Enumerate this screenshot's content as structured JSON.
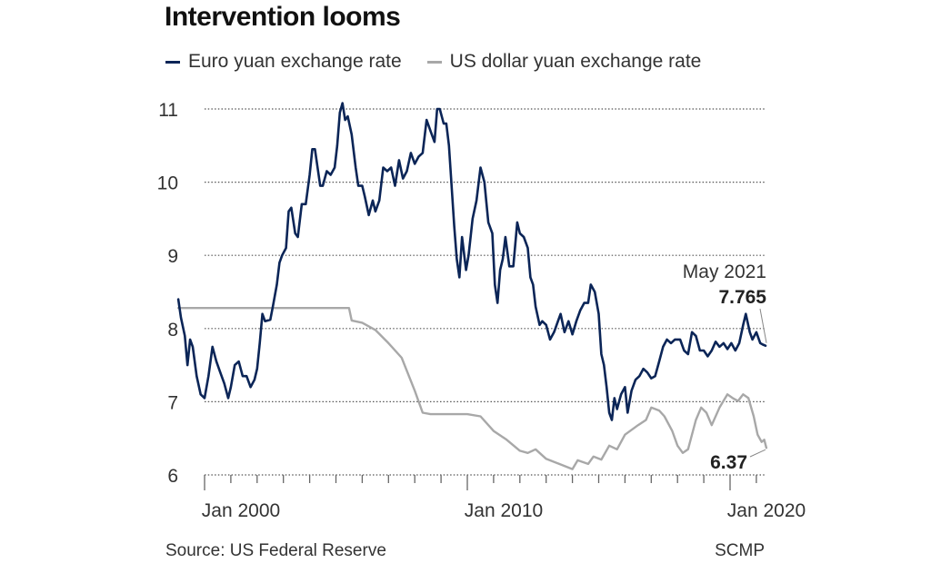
{
  "chart_data": {
    "type": "line",
    "title": "Intervention looms",
    "xlabel": "",
    "ylabel": "",
    "ylim": [
      6,
      11
    ],
    "xlim": [
      1999.0,
      2021.5
    ],
    "grid": true,
    "legend_position": "top-left",
    "y_ticks": [
      "11",
      "10",
      "9",
      "8",
      "7",
      "6"
    ],
    "y_tick_values": [
      11,
      10,
      9,
      8,
      7,
      6
    ],
    "x_tick_labels": [
      {
        "label": "Jan 2000",
        "value": 2000
      },
      {
        "label": "Jan 2010",
        "value": 2010
      },
      {
        "label": "Jan 2020",
        "value": 2020
      }
    ],
    "minor_tick_years": [
      2000,
      2001,
      2002,
      2003,
      2004,
      2005,
      2006,
      2007,
      2008,
      2009,
      2010,
      2011,
      2012,
      2013,
      2014,
      2015,
      2016,
      2017,
      2018,
      2019,
      2020,
      2021
    ],
    "series": [
      {
        "name": "Euro yuan exchange rate",
        "color": "#0b2557",
        "points": [
          [
            1999.0,
            8.4
          ],
          [
            1999.1,
            8.15
          ],
          [
            1999.25,
            7.9
          ],
          [
            1999.35,
            7.5
          ],
          [
            1999.45,
            7.85
          ],
          [
            1999.55,
            7.75
          ],
          [
            1999.7,
            7.35
          ],
          [
            1999.85,
            7.1
          ],
          [
            2000.0,
            7.05
          ],
          [
            2000.15,
            7.35
          ],
          [
            2000.3,
            7.75
          ],
          [
            2000.45,
            7.55
          ],
          [
            2000.6,
            7.4
          ],
          [
            2000.75,
            7.25
          ],
          [
            2000.9,
            7.05
          ],
          [
            2001.0,
            7.2
          ],
          [
            2001.15,
            7.5
          ],
          [
            2001.3,
            7.55
          ],
          [
            2001.45,
            7.35
          ],
          [
            2001.6,
            7.35
          ],
          [
            2001.75,
            7.2
          ],
          [
            2001.9,
            7.3
          ],
          [
            2002.0,
            7.45
          ],
          [
            2002.1,
            7.8
          ],
          [
            2002.2,
            8.2
          ],
          [
            2002.3,
            8.1
          ],
          [
            2002.5,
            8.12
          ],
          [
            2002.6,
            8.3
          ],
          [
            2002.75,
            8.6
          ],
          [
            2002.85,
            8.9
          ],
          [
            2002.95,
            9.0
          ],
          [
            2003.1,
            9.1
          ],
          [
            2003.2,
            9.6
          ],
          [
            2003.3,
            9.65
          ],
          [
            2003.45,
            9.3
          ],
          [
            2003.55,
            9.25
          ],
          [
            2003.7,
            9.7
          ],
          [
            2003.85,
            9.7
          ],
          [
            2004.0,
            10.1
          ],
          [
            2004.1,
            10.45
          ],
          [
            2004.2,
            10.45
          ],
          [
            2004.3,
            10.2
          ],
          [
            2004.4,
            9.95
          ],
          [
            2004.5,
            9.95
          ],
          [
            2004.65,
            10.15
          ],
          [
            2004.8,
            10.1
          ],
          [
            2004.95,
            10.2
          ],
          [
            2005.05,
            10.5
          ],
          [
            2005.15,
            10.95
          ],
          [
            2005.25,
            11.08
          ],
          [
            2005.35,
            10.85
          ],
          [
            2005.45,
            10.9
          ],
          [
            2005.6,
            10.65
          ],
          [
            2005.75,
            10.2
          ],
          [
            2005.85,
            9.95
          ],
          [
            2006.0,
            9.95
          ],
          [
            2006.1,
            9.8
          ],
          [
            2006.25,
            9.55
          ],
          [
            2006.4,
            9.75
          ],
          [
            2006.5,
            9.6
          ],
          [
            2006.65,
            9.75
          ],
          [
            2006.8,
            10.2
          ],
          [
            2006.95,
            10.15
          ],
          [
            2007.1,
            10.2
          ],
          [
            2007.25,
            9.95
          ],
          [
            2007.4,
            10.3
          ],
          [
            2007.55,
            10.05
          ],
          [
            2007.7,
            10.15
          ],
          [
            2007.85,
            10.4
          ],
          [
            2008.0,
            10.25
          ],
          [
            2008.15,
            10.35
          ],
          [
            2008.3,
            10.4
          ],
          [
            2008.45,
            10.85
          ],
          [
            2008.6,
            10.7
          ],
          [
            2008.75,
            10.55
          ],
          [
            2008.85,
            11.0
          ],
          [
            2008.95,
            11.0
          ],
          [
            2009.1,
            10.8
          ],
          [
            2009.2,
            10.8
          ],
          [
            2009.3,
            10.5
          ],
          [
            2009.4,
            9.95
          ],
          [
            2009.5,
            9.4
          ],
          [
            2009.6,
            8.95
          ],
          [
            2009.7,
            8.7
          ],
          [
            2009.8,
            9.25
          ],
          [
            2009.95,
            8.8
          ],
          [
            2010.05,
            9.0
          ],
          [
            2010.2,
            9.5
          ],
          [
            2010.35,
            9.75
          ],
          [
            2010.5,
            10.2
          ],
          [
            2010.65,
            10.0
          ],
          [
            2010.8,
            9.45
          ],
          [
            2010.95,
            9.3
          ],
          [
            2011.05,
            8.6
          ],
          [
            2011.15,
            8.35
          ],
          [
            2011.25,
            8.8
          ],
          [
            2011.35,
            8.95
          ],
          [
            2011.45,
            9.25
          ],
          [
            2011.6,
            8.85
          ],
          [
            2011.75,
            8.85
          ],
          [
            2011.9,
            9.45
          ],
          [
            2012.0,
            9.3
          ],
          [
            2012.15,
            9.25
          ],
          [
            2012.3,
            9.1
          ],
          [
            2012.4,
            8.7
          ],
          [
            2012.5,
            8.6
          ],
          [
            2012.6,
            8.3
          ],
          [
            2012.75,
            8.05
          ],
          [
            2012.85,
            8.1
          ],
          [
            2013.0,
            8.05
          ],
          [
            2013.15,
            7.85
          ],
          [
            2013.3,
            7.95
          ],
          [
            2013.45,
            8.1
          ],
          [
            2013.55,
            8.2
          ],
          [
            2013.7,
            7.95
          ],
          [
            2013.85,
            8.1
          ],
          [
            2014.0,
            7.92
          ],
          [
            2014.15,
            8.1
          ],
          [
            2014.3,
            8.25
          ],
          [
            2014.45,
            8.35
          ],
          [
            2014.6,
            8.35
          ],
          [
            2014.7,
            8.6
          ],
          [
            2014.85,
            8.5
          ],
          [
            2015.0,
            8.2
          ],
          [
            2015.1,
            7.65
          ],
          [
            2015.2,
            7.5
          ],
          [
            2015.3,
            7.2
          ],
          [
            2015.4,
            6.85
          ],
          [
            2015.5,
            6.75
          ],
          [
            2015.6,
            7.05
          ],
          [
            2015.7,
            6.9
          ],
          [
            2015.85,
            7.1
          ],
          [
            2016.0,
            7.2
          ],
          [
            2016.1,
            6.85
          ],
          [
            2016.25,
            7.15
          ],
          [
            2016.4,
            7.3
          ],
          [
            2016.55,
            7.35
          ],
          [
            2016.7,
            7.45
          ],
          [
            2016.85,
            7.4
          ],
          [
            2017.0,
            7.32
          ],
          [
            2017.15,
            7.35
          ],
          [
            2017.3,
            7.55
          ],
          [
            2017.45,
            7.75
          ],
          [
            2017.6,
            7.85
          ],
          [
            2017.75,
            7.8
          ],
          [
            2017.9,
            7.85
          ],
          [
            2018.1,
            7.85
          ],
          [
            2018.25,
            7.7
          ],
          [
            2018.4,
            7.65
          ],
          [
            2018.55,
            7.95
          ],
          [
            2018.7,
            7.9
          ],
          [
            2018.85,
            7.7
          ],
          [
            2019.0,
            7.7
          ],
          [
            2019.15,
            7.62
          ],
          [
            2019.3,
            7.7
          ],
          [
            2019.45,
            7.82
          ],
          [
            2019.6,
            7.75
          ],
          [
            2019.75,
            7.8
          ],
          [
            2019.9,
            7.72
          ],
          [
            2020.05,
            7.8
          ],
          [
            2020.2,
            7.7
          ],
          [
            2020.35,
            7.8
          ],
          [
            2020.5,
            8.05
          ],
          [
            2020.6,
            8.2
          ],
          [
            2020.75,
            7.95
          ],
          [
            2020.85,
            7.85
          ],
          [
            2021.0,
            7.95
          ],
          [
            2021.15,
            7.8
          ],
          [
            2021.25,
            7.78
          ],
          [
            2021.35,
            7.765
          ]
        ]
      },
      {
        "name": "US dollar yuan exchange rate",
        "color": "#a8a8a8",
        "points": [
          [
            1999.0,
            8.28
          ],
          [
            2005.5,
            8.28
          ],
          [
            2005.6,
            8.11
          ],
          [
            2006.0,
            8.08
          ],
          [
            2006.5,
            7.98
          ],
          [
            2007.0,
            7.8
          ],
          [
            2007.5,
            7.6
          ],
          [
            2008.0,
            7.15
          ],
          [
            2008.3,
            6.85
          ],
          [
            2008.6,
            6.83
          ],
          [
            2009.0,
            6.83
          ],
          [
            2009.5,
            6.83
          ],
          [
            2010.0,
            6.83
          ],
          [
            2010.5,
            6.8
          ],
          [
            2011.0,
            6.6
          ],
          [
            2011.5,
            6.48
          ],
          [
            2012.0,
            6.33
          ],
          [
            2012.3,
            6.3
          ],
          [
            2012.6,
            6.35
          ],
          [
            2013.0,
            6.22
          ],
          [
            2013.5,
            6.15
          ],
          [
            2014.0,
            6.08
          ],
          [
            2014.2,
            6.2
          ],
          [
            2014.6,
            6.15
          ],
          [
            2014.8,
            6.25
          ],
          [
            2015.1,
            6.21
          ],
          [
            2015.4,
            6.4
          ],
          [
            2015.7,
            6.35
          ],
          [
            2016.0,
            6.55
          ],
          [
            2016.5,
            6.68
          ],
          [
            2016.8,
            6.75
          ],
          [
            2017.0,
            6.92
          ],
          [
            2017.3,
            6.88
          ],
          [
            2017.5,
            6.8
          ],
          [
            2017.8,
            6.6
          ],
          [
            2018.0,
            6.4
          ],
          [
            2018.2,
            6.3
          ],
          [
            2018.4,
            6.35
          ],
          [
            2018.7,
            6.75
          ],
          [
            2018.9,
            6.92
          ],
          [
            2019.1,
            6.85
          ],
          [
            2019.3,
            6.68
          ],
          [
            2019.6,
            6.92
          ],
          [
            2019.9,
            7.1
          ],
          [
            2020.1,
            7.05
          ],
          [
            2020.3,
            7.01
          ],
          [
            2020.5,
            7.1
          ],
          [
            2020.7,
            7.05
          ],
          [
            2020.9,
            6.8
          ],
          [
            2021.05,
            6.55
          ],
          [
            2021.2,
            6.45
          ],
          [
            2021.3,
            6.48
          ],
          [
            2021.38,
            6.37
          ]
        ]
      }
    ],
    "annotations": [
      {
        "label_date": "May 2021",
        "label_value": "7.765",
        "series": "Euro yuan exchange rate"
      },
      {
        "label_value": "6.37",
        "series": "US dollar yuan exchange rate"
      }
    ]
  },
  "legend": {
    "items": [
      {
        "label": "Euro yuan exchange rate",
        "color": "#0b2557"
      },
      {
        "label": "US dollar yuan exchange rate",
        "color": "#a8a8a8"
      }
    ]
  },
  "footer": {
    "source": "Source: US Federal Reserve",
    "credit": "SCMP"
  }
}
